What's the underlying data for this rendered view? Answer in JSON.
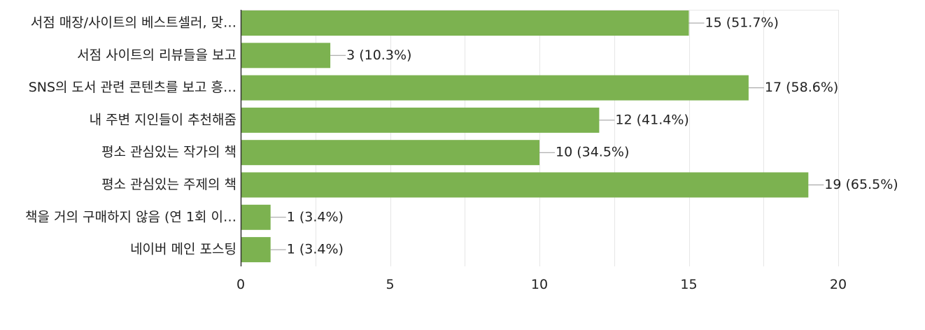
{
  "chart_data": {
    "type": "bar",
    "orientation": "horizontal",
    "categories": [
      "서점 매장/사이트의 베스트셀러, 맞…",
      "서점 사이트의 리뷰들을 보고",
      "SNS의 도서 관련 콘텐츠를 보고 흥…",
      "내 주변 지인들이 추천해줌",
      "평소 관심있는 작가의 책",
      "평소 관심있는 주제의 책",
      "책을 거의 구매하지 않음 (연 1회 이…",
      "네이버 메인 포스팅"
    ],
    "values": [
      15,
      3,
      17,
      12,
      10,
      19,
      1,
      1
    ],
    "data_labels": [
      "15 (51.7%)",
      "3 (10.3%)",
      "17 (58.6%)",
      "12 (41.4%)",
      "10 (34.5%)",
      "19 (65.5%)",
      "1 (3.4%)",
      "1 (3.4%)"
    ],
    "x_ticks": [
      "0",
      "5",
      "10",
      "15",
      "20"
    ],
    "xlim": [
      0,
      20
    ],
    "grid": true,
    "bar_color": "#7cb250",
    "grid_color": "#e6e6e6",
    "axis_color": "#333333",
    "title": "",
    "xlabel": "",
    "ylabel": ""
  }
}
